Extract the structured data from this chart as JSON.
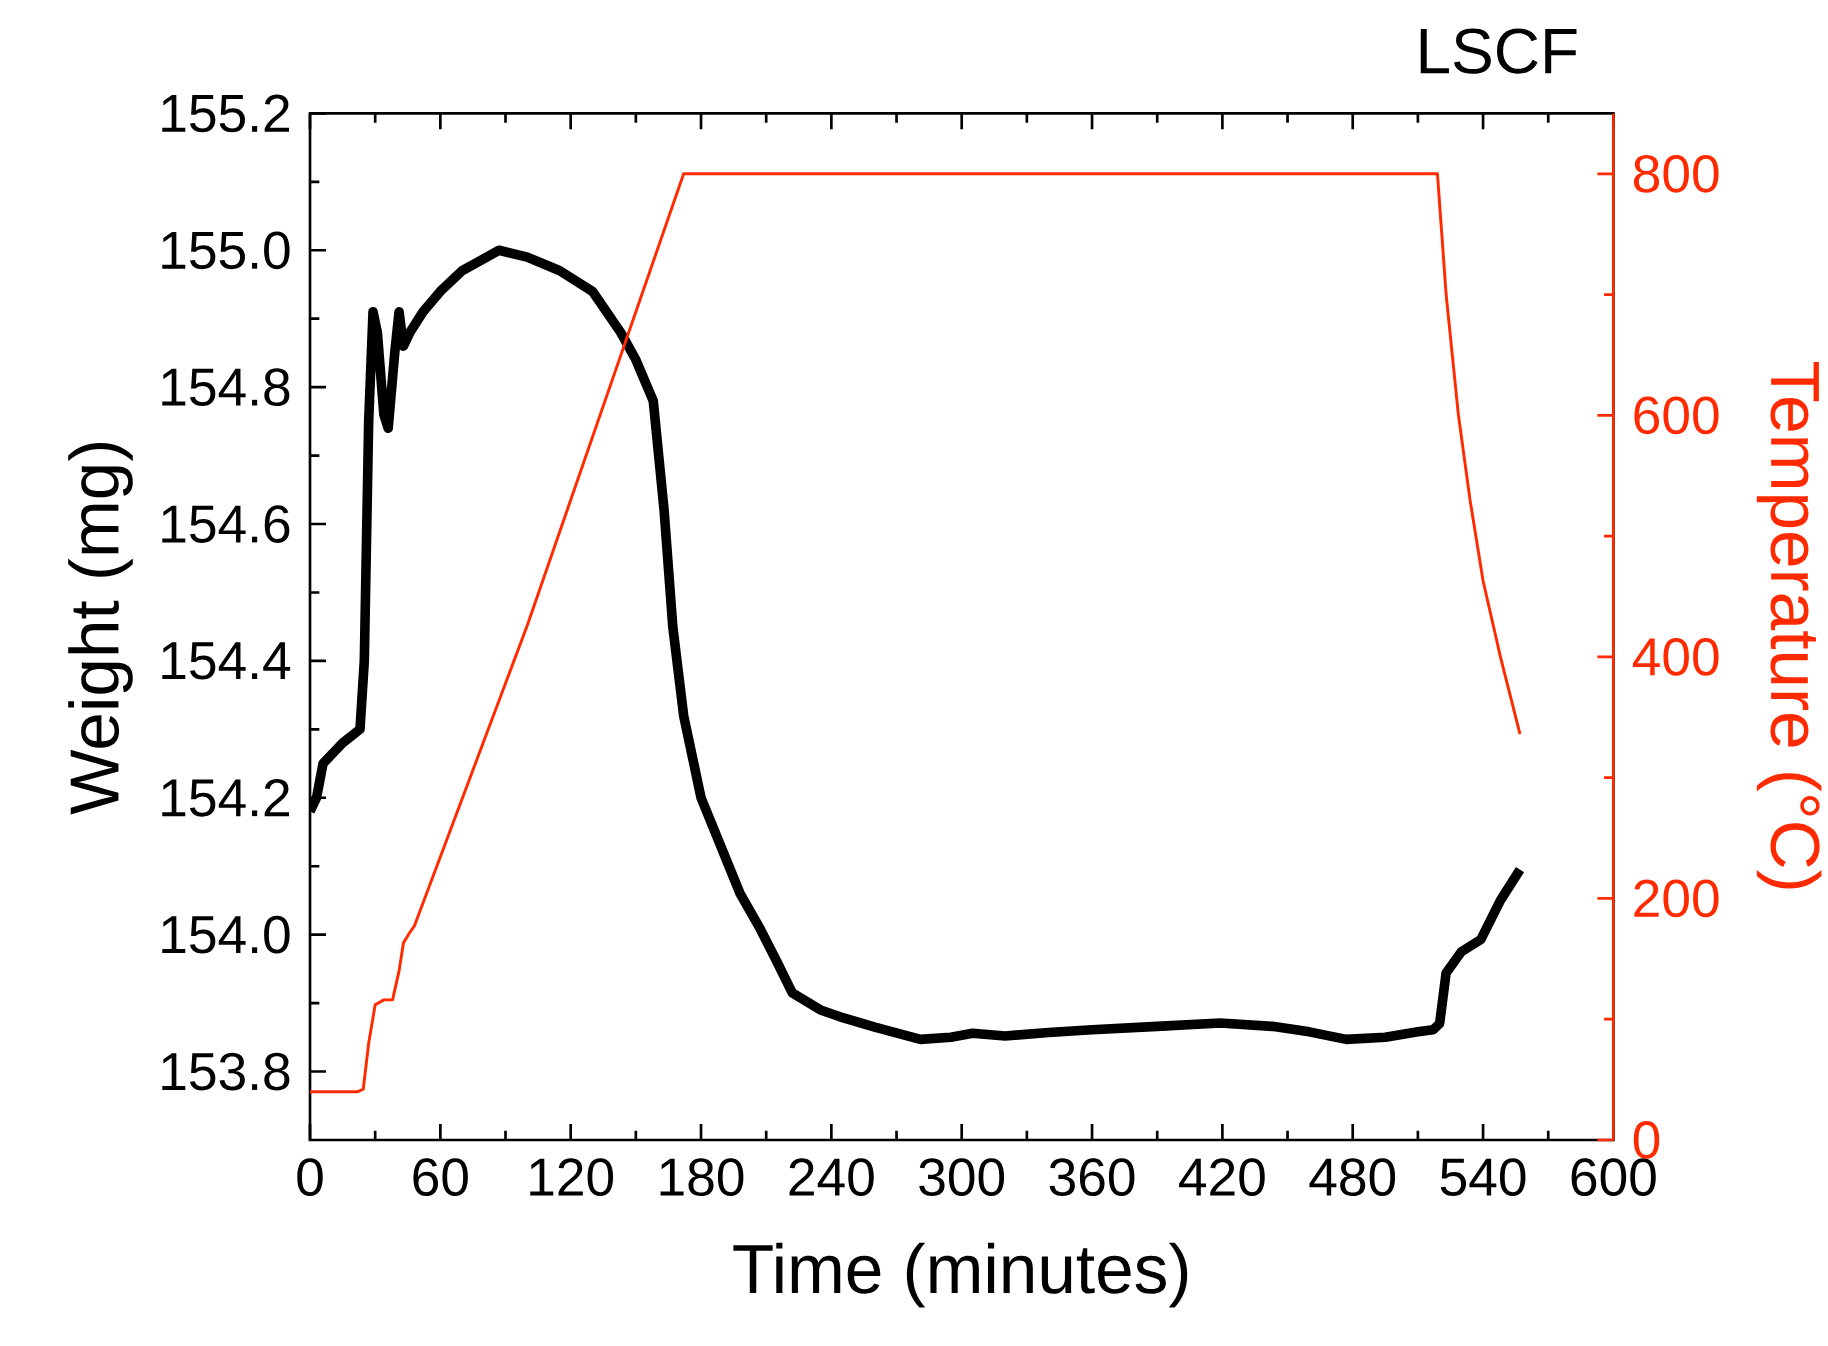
{
  "chart_data": {
    "type": "line",
    "title": "LSCF",
    "xlabel": "Time (minutes)",
    "ylabel": "Weight (mg)",
    "y2label": "Temperature (°C)",
    "xlim": [
      0,
      600
    ],
    "xticks": [
      0,
      60,
      120,
      180,
      240,
      300,
      360,
      420,
      480,
      540,
      600
    ],
    "ylim": [
      153.7,
      155.2
    ],
    "yticks": [
      {
        "value": 153.8,
        "label": "153.8"
      },
      {
        "value": 154.0,
        "label": "154.0"
      },
      {
        "value": 154.2,
        "label": "154.2"
      },
      {
        "value": 154.4,
        "label": "154.4"
      },
      {
        "value": 154.6,
        "label": "154.6"
      },
      {
        "value": 154.8,
        "label": "154.8"
      },
      {
        "value": 155.0,
        "label": "155.0"
      },
      {
        "value": 155.2,
        "label": "155.2"
      }
    ],
    "y2lim": [
      0,
      850
    ],
    "y2ticks": [
      0,
      200,
      400,
      600,
      800
    ],
    "grid": false,
    "marker": "none",
    "line_style": "solid",
    "series": [
      {
        "color": "#000000",
        "x": [
          0,
          3,
          6,
          15,
          23,
          25,
          27,
          29,
          31,
          34,
          36,
          39,
          41,
          43,
          46,
          52,
          60,
          70,
          87,
          100,
          115,
          130,
          143,
          150,
          158,
          163,
          167,
          172,
          180,
          189,
          198,
          207,
          215,
          222,
          235,
          244,
          260,
          281,
          295,
          305,
          320,
          340,
          360,
          390,
          419,
          443,
          460,
          477,
          495,
          510,
          517,
          520,
          523,
          530,
          539,
          548,
          557
        ],
        "values": [
          154.18,
          154.2,
          154.25,
          154.28,
          154.3,
          154.4,
          154.75,
          154.91,
          154.88,
          154.76,
          154.74,
          154.85,
          154.91,
          154.86,
          154.88,
          154.91,
          154.94,
          154.97,
          155.0,
          154.99,
          154.97,
          154.94,
          154.88,
          154.84,
          154.78,
          154.62,
          154.45,
          154.32,
          154.2,
          154.13,
          154.06,
          154.01,
          153.96,
          153.915,
          153.89,
          153.88,
          153.865,
          153.847,
          153.85,
          153.856,
          153.852,
          153.857,
          153.861,
          153.866,
          153.871,
          153.866,
          153.858,
          153.847,
          153.85,
          153.858,
          153.861,
          153.87,
          153.944,
          153.975,
          153.993,
          154.05,
          154.095
        ]
      },
      {
        "color": "#ff2a00",
        "axis": "y2",
        "x": [
          0,
          22,
          24.5,
          27,
          30,
          34,
          38,
          41,
          43,
          46,
          48,
          100,
          172,
          519,
          523,
          528.6,
          534,
          540,
          548,
          557
        ],
        "values": [
          40,
          40,
          42,
          80,
          112,
          116,
          116,
          140,
          163,
          172,
          177,
          426,
          800,
          800,
          700,
          601,
          530,
          463,
          400,
          336
        ]
      }
    ]
  }
}
